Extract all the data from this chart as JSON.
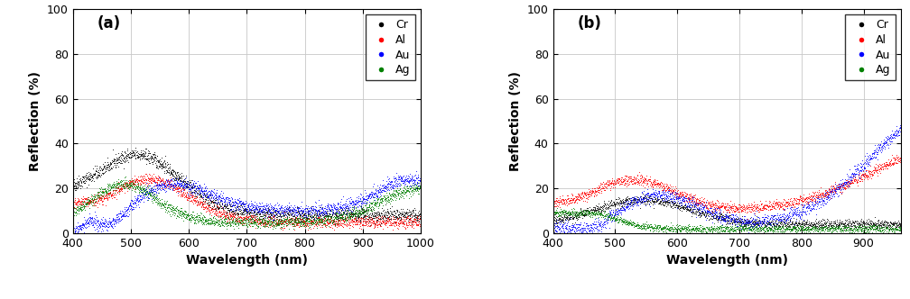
{
  "xlim_a": [
    400,
    1000
  ],
  "xlim_b": [
    400,
    960
  ],
  "ylim": [
    0,
    100
  ],
  "yticks": [
    0,
    20,
    40,
    60,
    80,
    100
  ],
  "xticks_a": [
    400,
    500,
    600,
    700,
    800,
    900,
    1000
  ],
  "xticks_b": [
    400,
    500,
    600,
    700,
    800,
    900
  ],
  "xlabel": "Wavelength (nm)",
  "ylabel": "Reflection (%)",
  "label_a": "(a)",
  "label_b": "(b)",
  "legend_labels": [
    "Cr",
    "Al",
    "Au",
    "Ag"
  ],
  "colors": [
    "black",
    "red",
    "blue",
    "green"
  ],
  "noise_seed": 42,
  "background_color": "white",
  "grid_color": "#c8c8c8"
}
